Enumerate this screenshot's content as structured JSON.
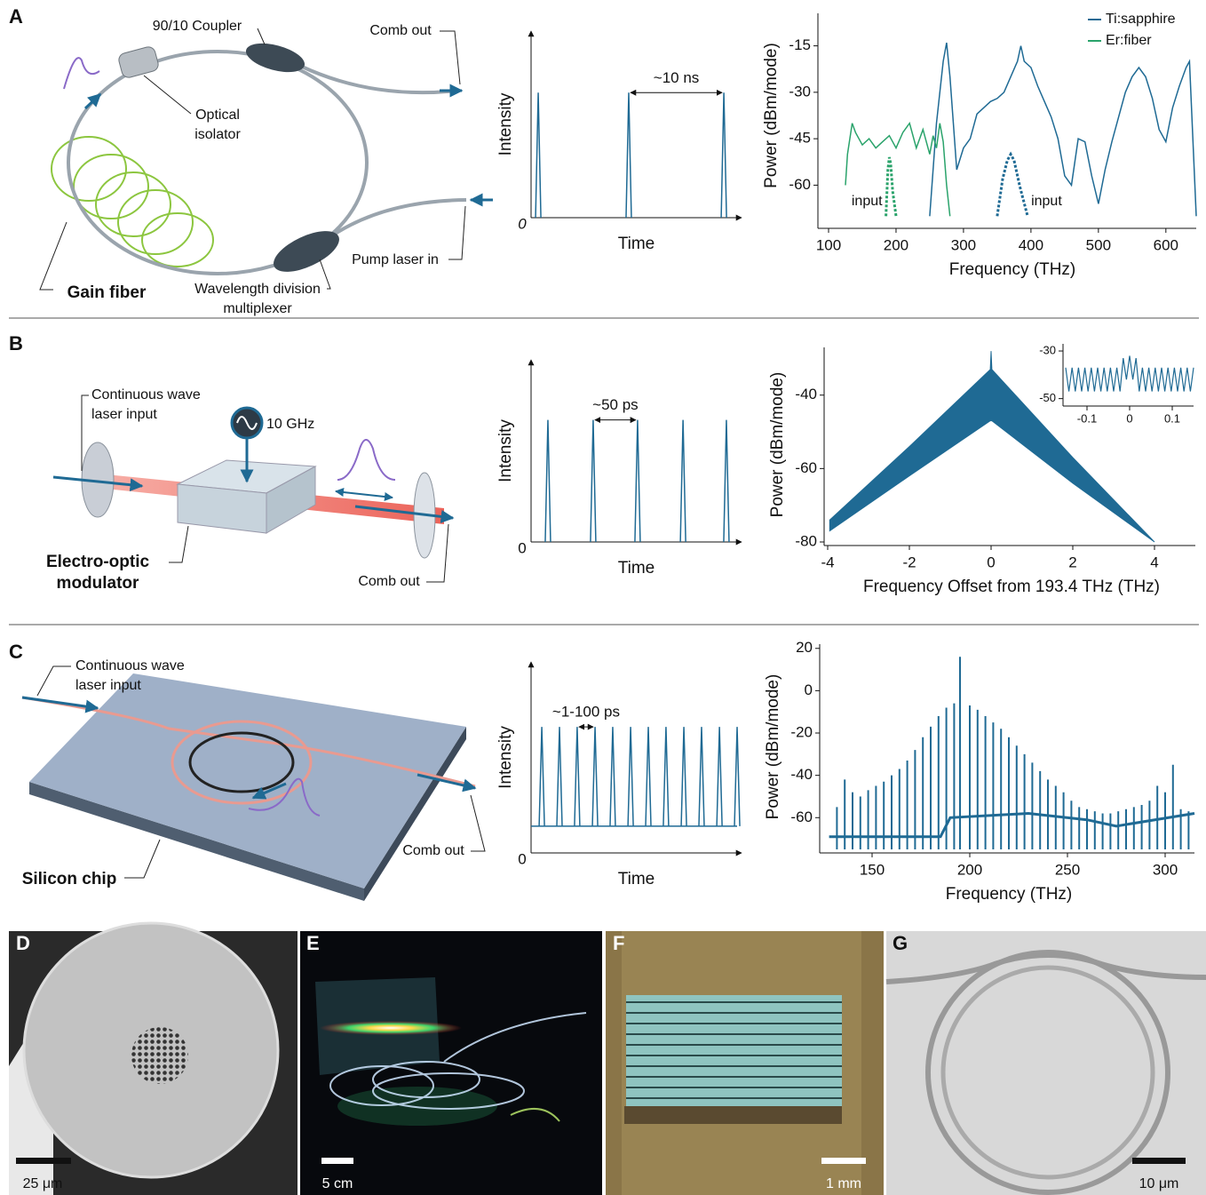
{
  "diagrams": [
    {
      "letter": "A",
      "coupler": "90/10 Coupler",
      "comb_out": "Comb out",
      "isolator": [
        "Optical",
        "isolator"
      ],
      "gain_fiber": "Gain fiber",
      "wdm": [
        "Wavelength division",
        "multiplexer"
      ],
      "pump": "Pump laser in"
    },
    {
      "letter": "B",
      "cw_input": [
        "Continuous wave",
        "laser input"
      ],
      "rf": "10 GHz",
      "modulator": [
        "Electro-optic",
        "modulator"
      ],
      "comb_out": "Comb out"
    },
    {
      "letter": "C",
      "cw_input": [
        "Continuous wave",
        "laser input"
      ],
      "comb_out": "Comb out",
      "chip": "Silicon chip"
    }
  ],
  "chart_data": [
    {
      "type": "pulse",
      "x_label": "Time",
      "y_label": "Intensity",
      "origin_label": "0",
      "annotation": "~10 ns",
      "color": "#1f6a94",
      "x": [
        0.034,
        0.464,
        0.916
      ],
      "values": [
        0.67,
        0.67,
        0.67
      ],
      "xlim": [
        0,
        1
      ],
      "ylim": [
        0,
        1
      ]
    },
    {
      "type": "line",
      "x_label": "Frequency (THz)",
      "y_label": "Power (dBm/mode)",
      "legend": "top-right",
      "xlim": [
        100,
        645
      ],
      "ylim": [
        -70.5,
        -4.5
      ],
      "xticks": [
        100,
        200,
        300,
        400,
        500,
        600
      ],
      "yticks": [
        -15,
        -30,
        -45,
        -60
      ],
      "series": [
        {
          "name": "Ti:sapphire",
          "color": "#1f6a94",
          "x": [
            250,
            260,
            270,
            275,
            280,
            290,
            300,
            310,
            320,
            330,
            340,
            350,
            360,
            370,
            380,
            385,
            390,
            400,
            410,
            420,
            430,
            440,
            450,
            460,
            470,
            480,
            490,
            500,
            510,
            520,
            530,
            540,
            550,
            560,
            570,
            580,
            590,
            600,
            610,
            620,
            630,
            635,
            640,
            645
          ],
          "values": [
            -70,
            -40,
            -20,
            -14,
            -25,
            -55,
            -48,
            -45,
            -37,
            -35,
            -33,
            -32,
            -30,
            -25,
            -20,
            -15,
            -20,
            -22,
            -28,
            -33,
            -38,
            -45,
            -57,
            -60,
            -45,
            -46,
            -57,
            -66,
            -55,
            -46,
            -38,
            -30,
            -25,
            -22,
            -25,
            -32,
            -42,
            -46,
            -35,
            -28,
            -22,
            -20,
            -45,
            -70
          ]
        },
        {
          "name": "Er:fiber",
          "color": "#2aa36b",
          "x": [
            125,
            128,
            135,
            140,
            150,
            160,
            170,
            180,
            190,
            200,
            210,
            220,
            230,
            240,
            250,
            255,
            260,
            265,
            270,
            275,
            280
          ],
          "values": [
            -60,
            -50,
            -40,
            -43,
            -47,
            -45,
            -48,
            -46,
            -44,
            -48,
            -43,
            -40,
            -48,
            -42,
            -50,
            -44,
            -48,
            -40,
            -46,
            -60,
            -70
          ]
        }
      ],
      "input_curves": [
        {
          "label": "input",
          "color": "#2aa36b",
          "x": [
            185,
            188,
            190,
            192,
            195,
            200
          ],
          "values": [
            -70,
            -55,
            -51,
            -53,
            -62,
            -70
          ]
        },
        {
          "label": "input",
          "color": "#1f6a94",
          "x": [
            350,
            358,
            365,
            370,
            375,
            383,
            395
          ],
          "values": [
            -70,
            -58,
            -52,
            -50,
            -52,
            -60,
            -70
          ]
        }
      ]
    },
    {
      "type": "pulse",
      "x_label": "Time",
      "y_label": "Intensity",
      "origin_label": "0",
      "annotation": "~50 ps",
      "color": "#1f6a94",
      "x": [
        0.08,
        0.295,
        0.506,
        0.722,
        0.928
      ],
      "values": [
        0.67,
        0.67,
        0.67,
        0.67,
        0.67
      ],
      "xlim": [
        0,
        1
      ],
      "ylim": [
        0,
        1
      ]
    },
    {
      "type": "area",
      "x_label": "Frequency Offset from 193.4 THz (THz)",
      "y_label": "Power (dBm/mode)",
      "color": "#1f6a94",
      "xlim": [
        -4,
        5
      ],
      "ylim": [
        -80,
        -27
      ],
      "xticks": [
        -4,
        -2,
        0,
        2,
        4
      ],
      "yticks": [
        -40,
        -60,
        -80
      ],
      "x": [
        -3.95,
        -2,
        -0.02,
        0,
        0.02,
        2,
        4
      ],
      "upper": [
        -74,
        -54,
        -33,
        -28,
        -33,
        -57,
        -80
      ],
      "lower": [
        -77,
        -62,
        -47,
        -47,
        -47,
        -64,
        -80
      ]
    },
    {
      "type": "line",
      "color": "#1f6a94",
      "xlim": [
        -0.15,
        0.15
      ],
      "ylim": [
        -52,
        -27
      ],
      "xticks": [
        -0.1,
        0,
        0.1
      ],
      "yticks": [
        -30,
        -50
      ],
      "x": [
        -0.15,
        -0.1425,
        -0.135,
        -0.1275,
        -0.12,
        -0.1125,
        -0.105,
        -0.0975,
        -0.09,
        -0.0825,
        -0.075,
        -0.0675,
        -0.06,
        -0.0525,
        -0.045,
        -0.0375,
        -0.03,
        -0.0225,
        -0.015,
        -0.0075,
        0,
        0.0075,
        0.015,
        0.0225,
        0.03,
        0.0375,
        0.045,
        0.0525,
        0.06,
        0.0675,
        0.075,
        0.0825,
        0.09,
        0.0975,
        0.105,
        0.1125,
        0.12,
        0.1275,
        0.135,
        0.1425,
        0.15
      ],
      "values": [
        -37,
        -47,
        -37,
        -47,
        -37,
        -47,
        -37,
        -47,
        -37,
        -47,
        -37,
        -47,
        -37,
        -47,
        -37,
        -47,
        -37,
        -47,
        -33,
        -42,
        -32,
        -42,
        -33,
        -47,
        -37,
        -47,
        -37,
        -47,
        -37,
        -47,
        -37,
        -47,
        -37,
        -47,
        -37,
        -47,
        -37,
        -47,
        -37,
        -47,
        -37
      ]
    },
    {
      "type": "pulse",
      "x_label": "Time",
      "y_label": "Intensity",
      "origin_label": "0",
      "annotation": "~1-100 ps",
      "color": "#1f6a94",
      "background": 0.14,
      "x": [
        0.051,
        0.135,
        0.219,
        0.304,
        0.388,
        0.473,
        0.557,
        0.641,
        0.726,
        0.81,
        0.895,
        0.979
      ],
      "values": [
        0.66,
        0.66,
        0.66,
        0.66,
        0.66,
        0.66,
        0.66,
        0.66,
        0.66,
        0.66,
        0.66,
        0.66
      ],
      "xlim": [
        0,
        1
      ],
      "ylim": [
        0,
        1
      ]
    },
    {
      "type": "stem",
      "x_label": "Frequency (THz)",
      "y_label": "Power (dBm/mode)",
      "color": "#1f6a94",
      "xlim": [
        125,
        315
      ],
      "ylim": [
        -75,
        22
      ],
      "xticks": [
        150,
        200,
        250,
        300
      ],
      "yticks": [
        20,
        0,
        -20,
        -40,
        -60
      ],
      "x": [
        132,
        136,
        140,
        144,
        148,
        152,
        156,
        160,
        164,
        168,
        172,
        176,
        180,
        184,
        188,
        192,
        195,
        200,
        204,
        208,
        212,
        216,
        220,
        224,
        228,
        232,
        236,
        240,
        244,
        248,
        252,
        256,
        260,
        264,
        268,
        272,
        276,
        280,
        284,
        288,
        292,
        296,
        300,
        304,
        308,
        312
      ],
      "values": [
        -55,
        -42,
        -48,
        -50,
        -47,
        -45,
        -43,
        -40,
        -37,
        -33,
        -28,
        -22,
        -17,
        -12,
        -8,
        -6,
        16,
        -7,
        -9,
        -12,
        -15,
        -18,
        -22,
        -26,
        -30,
        -34,
        -38,
        -42,
        -45,
        -48,
        -52,
        -55,
        -56,
        -57,
        -58,
        -58,
        -57,
        -56,
        -55,
        -54,
        -52,
        -45,
        -48,
        -35,
        -56,
        -57
      ],
      "floor_x": [
        128,
        185,
        190,
        230,
        260,
        275,
        315
      ],
      "floor": [
        -69,
        -69,
        -60,
        -58,
        -61,
        -64,
        -58
      ]
    }
  ],
  "photos": [
    {
      "letter": "D",
      "scale_bar": "25 μm"
    },
    {
      "letter": "E",
      "scale_bar": "5 cm"
    },
    {
      "letter": "F",
      "scale_bar": "1 mm"
    },
    {
      "letter": "G",
      "scale_bar": "10 μm"
    }
  ]
}
